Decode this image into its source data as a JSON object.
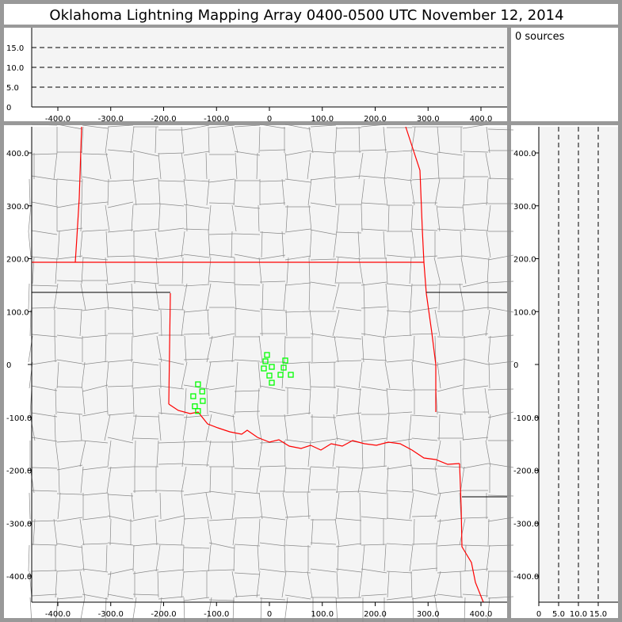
{
  "title": "Oklahoma Lightning Mapping Array   0400-0500 UTC  November 12, 2014",
  "source_count_label": "0 sources",
  "colors": {
    "frame": "#999999",
    "plot_bg": "#f4f4f4",
    "state_border": "#ff0000",
    "county_border": "#888888",
    "station": "#00ff00"
  },
  "chart_data": {
    "type": "scatter",
    "plan_view": {
      "xlim": [
        -450,
        450
      ],
      "ylim": [
        -450,
        450
      ],
      "xticks": [
        "-400.0",
        "-300.0",
        "-200.0",
        "-100.0",
        "0",
        "100.0",
        "200.0",
        "300.0",
        "400.0"
      ],
      "yticks": [
        "400.0",
        "300.0",
        "200.0",
        "100.0",
        "0",
        "-100.0",
        "-200.0",
        "-300.0",
        "-400.0"
      ],
      "stations_km": [
        [
          -4.5,
          18
        ],
        [
          -7.5,
          6
        ],
        [
          -10.5,
          -7.5
        ],
        [
          4.5,
          -4.5
        ],
        [
          0,
          -21
        ],
        [
          4.5,
          -34.5
        ],
        [
          30,
          7.5
        ],
        [
          27,
          -6
        ],
        [
          21,
          -19.5
        ],
        [
          40.5,
          -19.5
        ],
        [
          -135,
          -37.5
        ],
        [
          -127,
          -51
        ],
        [
          -144,
          -60
        ],
        [
          -126,
          -69
        ],
        [
          -141,
          -79
        ],
        [
          -135,
          -88
        ]
      ]
    },
    "altitude_x": {
      "ylim": [
        0,
        20
      ],
      "yticks": [
        "15.0",
        "10.0",
        "5.0",
        "0"
      ],
      "dashed_levels": [
        5,
        10,
        15
      ]
    },
    "altitude_y": {
      "xticks": [
        "0",
        "5.0",
        "10.0",
        "15.0"
      ],
      "dashed_levels": [
        5,
        10,
        15
      ]
    },
    "sources": []
  }
}
